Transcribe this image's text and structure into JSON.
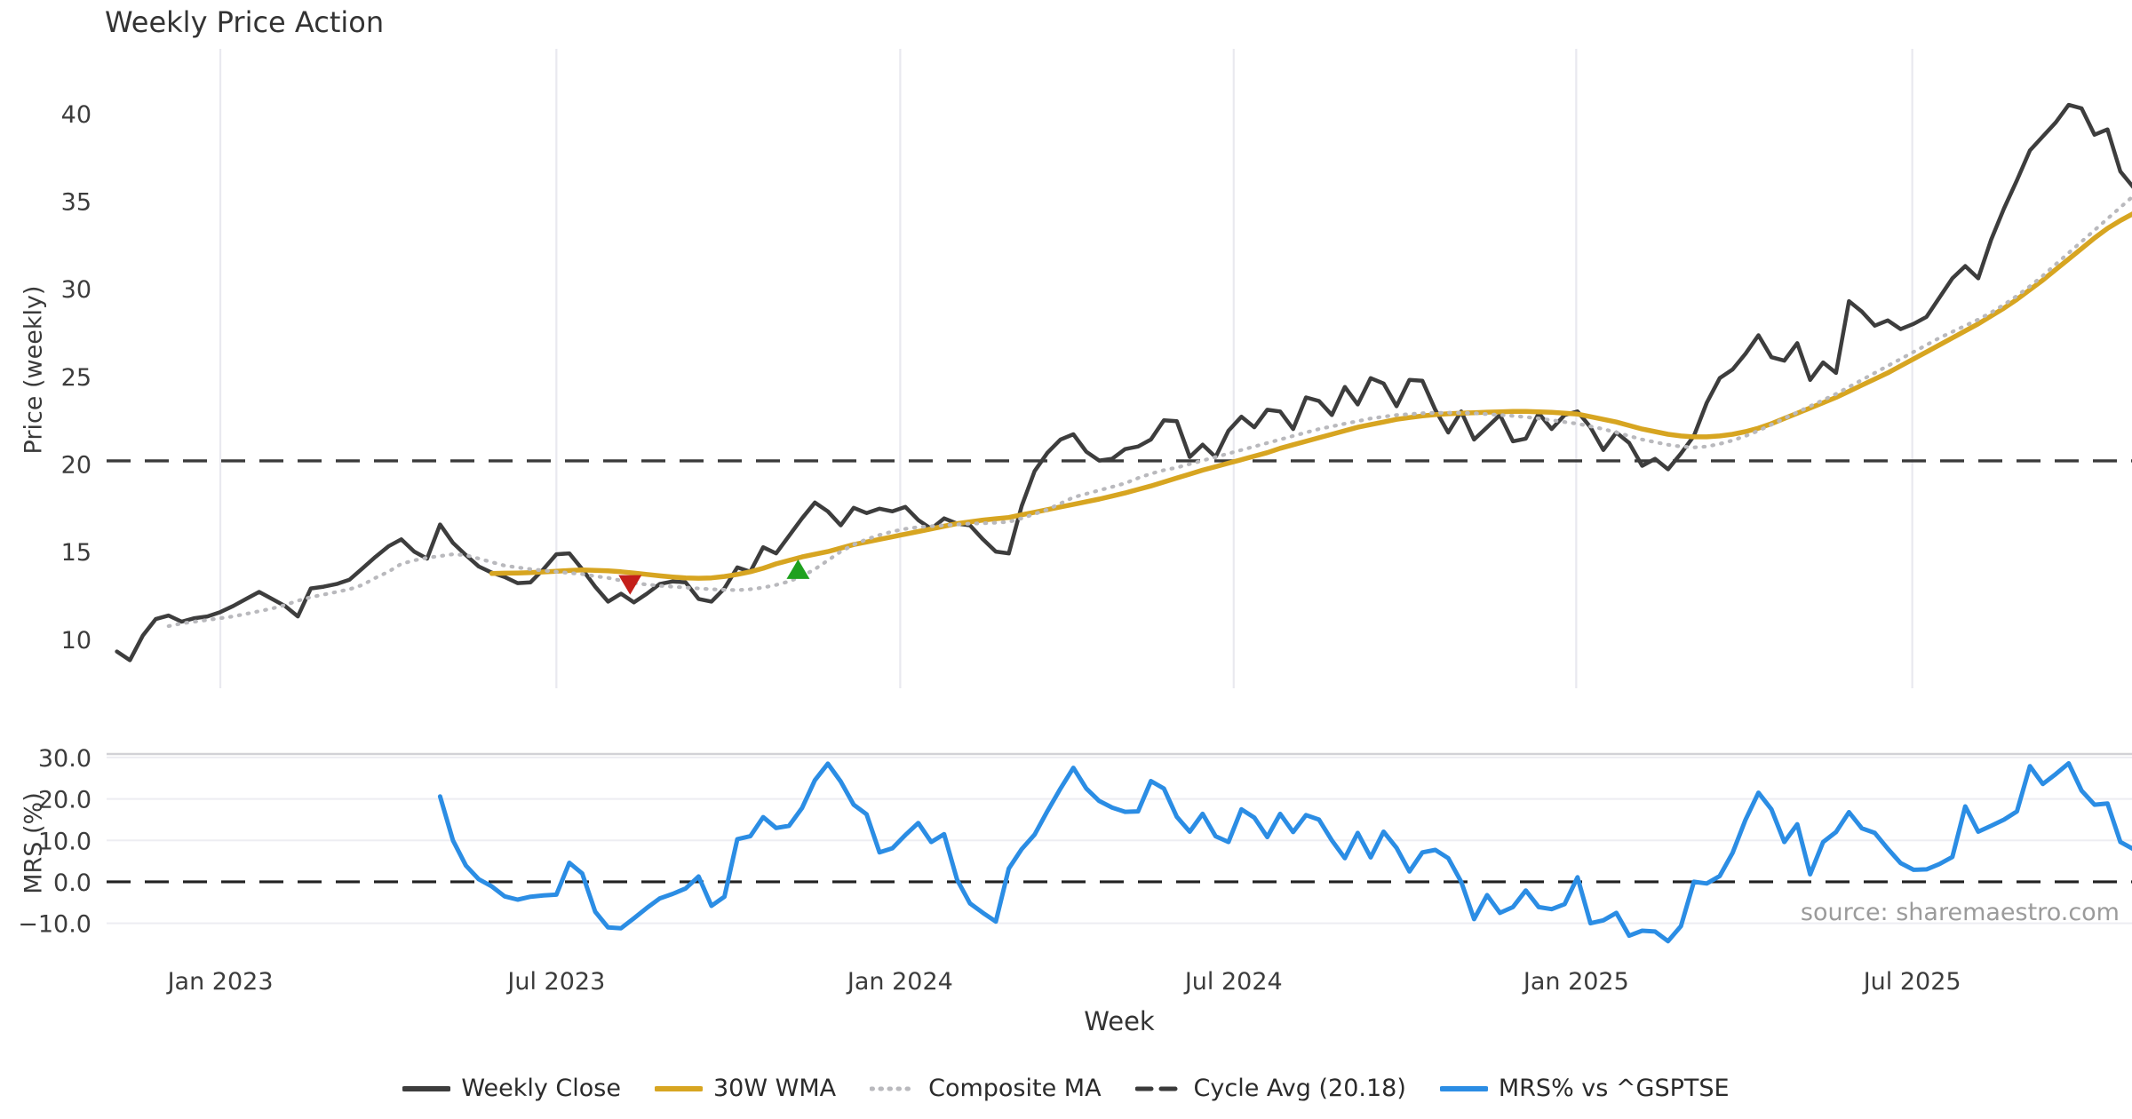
{
  "title": "Weekly Price Action",
  "price_axis_label": "Price (weekly)",
  "mrs_axis_label": "MRS (%)",
  "x_axis_label": "Week",
  "source": "source: sharemaestro.com",
  "legend": [
    {
      "label": "Weekly Close",
      "color": "#3d3d3d",
      "style": "solid"
    },
    {
      "label": "30W WMA",
      "color": "#d7a521",
      "style": "solid"
    },
    {
      "label": "Composite MA",
      "color": "#b9b9bd",
      "style": "dotted"
    },
    {
      "label": "Cycle Avg (20.18)",
      "color": "#3a3a3a",
      "style": "dashed"
    },
    {
      "label": "MRS% vs ^GSPTSE",
      "color": "#2b8de4",
      "style": "solid"
    }
  ],
  "chart_data": {
    "type": "line",
    "title": "Weekly Price Action",
    "x_unit": "weeks",
    "week_start": -8,
    "x_start_date": "2022-11-07",
    "x_axis": {
      "xlim": [
        -8.8,
        147.9
      ],
      "ticks": [
        {
          "w": 0,
          "label": "Jan 2023"
        },
        {
          "w": 26,
          "label": "Jul 2023"
        },
        {
          "w": 52.6,
          "label": "Jan 2024"
        },
        {
          "w": 78.4,
          "label": "Jul 2024"
        },
        {
          "w": 104.9,
          "label": "Jan 2025"
        },
        {
          "w": 130.9,
          "label": "Jul 2025"
        }
      ]
    },
    "price_axis": {
      "ylim": [
        7.2,
        43.7
      ],
      "ticks": [
        {
          "v": 40,
          "label": "40"
        },
        {
          "v": 35,
          "label": "35"
        },
        {
          "v": 30,
          "label": "30"
        },
        {
          "v": 25,
          "label": "25"
        },
        {
          "v": 20,
          "label": "20"
        },
        {
          "v": 15,
          "label": "15"
        },
        {
          "v": 10,
          "label": "10"
        }
      ]
    },
    "mrs_axis": {
      "ylim": [
        -14.8,
        33.2
      ],
      "ticks": [
        {
          "v": 30,
          "label": "30.0"
        },
        {
          "v": 20,
          "label": "20.0"
        },
        {
          "v": 10,
          "label": "10.0"
        },
        {
          "v": 0,
          "label": "0.0"
        },
        {
          "v": -10,
          "label": "−10.0"
        }
      ]
    },
    "cycle_avg": 20.18,
    "mrs_zero_line": 0,
    "series": [
      {
        "name": "Weekly Close",
        "panel": "price",
        "color": "#3d3d3d",
        "width": 4.5,
        "dash": null,
        "values": [
          9.3,
          8.8,
          10.2,
          11.15,
          11.35,
          11.0,
          11.2,
          11.3,
          11.55,
          11.9,
          12.3,
          12.7,
          12.3,
          11.9,
          11.3,
          12.9,
          13.0,
          13.15,
          13.4,
          14.05,
          14.7,
          15.3,
          15.7,
          15.0,
          14.6,
          16.55,
          15.5,
          14.8,
          14.15,
          13.8,
          13.55,
          13.2,
          13.25,
          14.0,
          14.85,
          14.9,
          14.0,
          13.0,
          12.15,
          12.6,
          12.1,
          12.6,
          13.15,
          13.3,
          13.25,
          12.3,
          12.15,
          12.9,
          14.1,
          13.85,
          15.25,
          14.9,
          15.9,
          16.9,
          17.8,
          17.3,
          16.5,
          17.5,
          17.2,
          17.45,
          17.3,
          17.55,
          16.8,
          16.3,
          16.9,
          16.6,
          16.5,
          15.7,
          15.0,
          14.9,
          17.6,
          19.6,
          20.65,
          21.4,
          21.7,
          20.7,
          20.2,
          20.3,
          20.85,
          21.0,
          21.4,
          22.5,
          22.45,
          20.4,
          21.1,
          20.4,
          21.9,
          22.7,
          22.1,
          23.1,
          23.0,
          22.0,
          23.8,
          23.6,
          22.8,
          24.4,
          23.4,
          24.9,
          24.6,
          23.3,
          24.8,
          24.75,
          23.1,
          21.8,
          23.0,
          21.4,
          22.1,
          22.8,
          21.3,
          21.45,
          22.9,
          22.0,
          22.8,
          23.0,
          22.1,
          20.8,
          21.8,
          21.2,
          19.9,
          20.3,
          19.7,
          20.6,
          21.6,
          23.5,
          24.9,
          25.4,
          26.3,
          27.35,
          26.1,
          25.9,
          26.9,
          24.8,
          25.8,
          25.2,
          29.3,
          28.7,
          27.9,
          28.2,
          27.7,
          28.0,
          28.4,
          29.5,
          30.6,
          31.3,
          30.6,
          32.8,
          34.6,
          36.2,
          37.9,
          38.7,
          39.5,
          40.5,
          40.3,
          38.8,
          39.1,
          36.7,
          35.8
        ]
      },
      {
        "name": "30W WMA",
        "panel": "price",
        "color": "#d7a521",
        "width": 5.5,
        "dash": null,
        "values": [
          null,
          null,
          null,
          null,
          null,
          null,
          null,
          null,
          null,
          null,
          null,
          null,
          null,
          null,
          null,
          null,
          null,
          null,
          null,
          null,
          null,
          null,
          null,
          null,
          null,
          null,
          null,
          null,
          null,
          13.75,
          13.77,
          13.78,
          13.8,
          13.84,
          13.88,
          13.92,
          13.95,
          13.93,
          13.9,
          13.85,
          13.78,
          13.7,
          13.62,
          13.55,
          13.5,
          13.48,
          13.5,
          13.58,
          13.7,
          13.85,
          14.05,
          14.3,
          14.5,
          14.7,
          14.85,
          15.0,
          15.2,
          15.4,
          15.55,
          15.7,
          15.85,
          16.0,
          16.15,
          16.3,
          16.45,
          16.6,
          16.7,
          16.8,
          16.88,
          16.95,
          17.1,
          17.25,
          17.4,
          17.55,
          17.7,
          17.85,
          18.0,
          18.17,
          18.35,
          18.55,
          18.75,
          18.97,
          19.2,
          19.42,
          19.65,
          19.85,
          20.05,
          20.25,
          20.45,
          20.65,
          20.9,
          21.1,
          21.3,
          21.5,
          21.7,
          21.9,
          22.1,
          22.25,
          22.4,
          22.55,
          22.65,
          22.75,
          22.82,
          22.87,
          22.9,
          22.93,
          22.96,
          22.98,
          23.0,
          23.0,
          22.98,
          22.95,
          22.9,
          22.85,
          22.7,
          22.55,
          22.4,
          22.2,
          22.0,
          21.85,
          21.7,
          21.6,
          21.55,
          21.55,
          21.6,
          21.7,
          21.85,
          22.05,
          22.3,
          22.6,
          22.9,
          23.2,
          23.5,
          23.8,
          24.15,
          24.5,
          24.85,
          25.2,
          25.6,
          26.0,
          26.4,
          26.8,
          27.2,
          27.6,
          28.0,
          28.45,
          28.9,
          29.4,
          29.95,
          30.5,
          31.1,
          31.7,
          32.3,
          32.9,
          33.45,
          33.9,
          34.3
        ]
      },
      {
        "name": "Composite MA",
        "panel": "price",
        "color": "#b9b9bd",
        "width": 4.2,
        "dash": "1.5 8.5",
        "values": [
          null,
          null,
          null,
          null,
          10.75,
          10.9,
          11.0,
          11.1,
          11.2,
          11.3,
          11.45,
          11.6,
          11.75,
          11.95,
          12.2,
          12.4,
          12.55,
          12.7,
          12.85,
          13.1,
          13.5,
          13.85,
          14.3,
          14.5,
          14.65,
          14.75,
          14.85,
          14.8,
          14.6,
          14.4,
          14.2,
          14.1,
          14.0,
          13.92,
          13.85,
          13.78,
          13.72,
          13.6,
          13.5,
          13.35,
          13.2,
          13.12,
          13.05,
          13.0,
          12.95,
          12.9,
          12.85,
          12.82,
          12.8,
          12.85,
          12.95,
          13.1,
          13.3,
          13.6,
          14.0,
          14.5,
          15.0,
          15.4,
          15.7,
          15.95,
          16.15,
          16.3,
          16.4,
          16.45,
          16.5,
          16.55,
          16.6,
          16.62,
          16.65,
          16.7,
          16.9,
          17.15,
          17.4,
          17.75,
          18.1,
          18.3,
          18.5,
          18.7,
          18.9,
          19.2,
          19.45,
          19.65,
          19.8,
          20.0,
          20.2,
          20.4,
          20.6,
          20.8,
          21.0,
          21.2,
          21.4,
          21.6,
          21.8,
          22.0,
          22.15,
          22.3,
          22.45,
          22.6,
          22.7,
          22.8,
          22.85,
          22.9,
          22.92,
          22.93,
          22.92,
          22.9,
          22.85,
          22.8,
          22.75,
          22.68,
          22.6,
          22.5,
          22.4,
          22.3,
          22.15,
          22.0,
          21.8,
          21.6,
          21.4,
          21.25,
          21.1,
          21.0,
          20.95,
          21.0,
          21.15,
          21.35,
          21.6,
          21.9,
          22.25,
          22.6,
          22.95,
          23.3,
          23.65,
          24.0,
          24.4,
          24.8,
          25.2,
          25.6,
          26.0,
          26.4,
          26.8,
          27.2,
          27.55,
          27.9,
          28.25,
          28.65,
          29.1,
          29.6,
          30.15,
          30.75,
          31.4,
          32.05,
          32.7,
          33.35,
          34.0,
          34.65,
          35.3
        ]
      },
      {
        "name": "MRS% vs ^GSPTSE",
        "panel": "mrs",
        "color": "#2b8de4",
        "width": 5,
        "dash": null,
        "values": [
          null,
          null,
          null,
          null,
          null,
          null,
          null,
          null,
          null,
          null,
          null,
          null,
          null,
          null,
          null,
          null,
          null,
          null,
          null,
          null,
          null,
          null,
          null,
          null,
          null,
          20.6,
          10.0,
          3.9,
          0.6,
          -1.1,
          -3.5,
          -4.3,
          -3.6,
          -3.3,
          -3.1,
          4.6,
          2.0,
          -7.2,
          -11.0,
          -11.2,
          -8.8,
          -6.3,
          -4.0,
          -2.9,
          -1.6,
          1.3,
          -5.8,
          -3.6,
          10.3,
          11.0,
          15.6,
          13.0,
          13.5,
          17.8,
          24.5,
          28.5,
          24.2,
          18.6,
          16.3,
          7.1,
          8.1,
          11.3,
          14.2,
          9.6,
          11.5,
          0.5,
          -5.2,
          -7.5,
          -9.6,
          3.2,
          7.9,
          11.4,
          17.1,
          22.5,
          27.5,
          22.5,
          19.5,
          17.9,
          16.9,
          17.0,
          24.3,
          22.5,
          15.7,
          12.1,
          16.4,
          11.0,
          9.6,
          17.5,
          15.5,
          10.8,
          16.4,
          12.0,
          16.1,
          15.0,
          10.0,
          5.7,
          11.8,
          5.9,
          12.1,
          8.2,
          2.5,
          7.1,
          7.7,
          5.7,
          0.0,
          -9.0,
          -3.2,
          -7.5,
          -6.1,
          -2.1,
          -6.1,
          -6.6,
          -5.4,
          1.1,
          -10.0,
          -9.3,
          -7.5,
          -13.0,
          -11.8,
          -12.0,
          -14.3,
          -10.7,
          0.0,
          -0.4,
          1.4,
          7.0,
          15.0,
          21.5,
          17.5,
          9.6,
          13.9,
          1.8,
          9.6,
          12.0,
          16.8,
          12.9,
          11.8,
          8.0,
          4.5,
          2.9,
          3.0,
          4.3,
          6.0,
          18.2,
          12.1,
          13.5,
          15.0,
          17.0,
          27.9,
          23.6,
          26.0,
          28.6,
          22.0,
          18.6,
          18.9,
          9.6,
          7.9
        ]
      }
    ],
    "markers": [
      {
        "type": "sell",
        "shape": "triangle-down",
        "color": "#c41f1a",
        "week": 31.7,
        "price": 13.1
      },
      {
        "type": "buy",
        "shape": "triangle-up",
        "color": "#1ea11e",
        "week": 44.7,
        "price": 14.0
      }
    ]
  }
}
